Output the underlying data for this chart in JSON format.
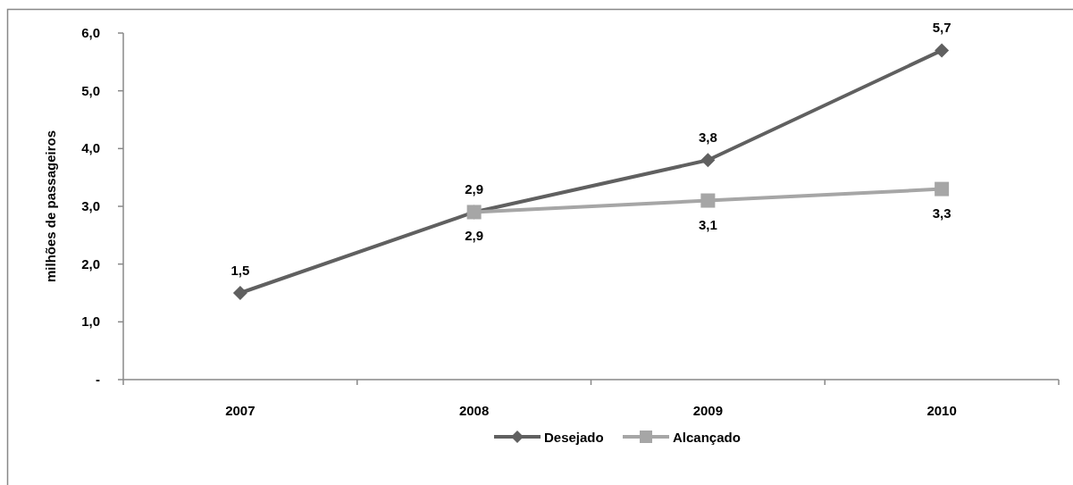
{
  "chart_data": {
    "type": "line",
    "ylabel": "milhões de passageiros",
    "categories": [
      "2007",
      "2008",
      "2009",
      "2010"
    ],
    "series": [
      {
        "name": "Desejado",
        "color": "#606060",
        "marker": "diamond",
        "values": [
          1.5,
          2.9,
          3.8,
          5.7
        ],
        "value_labels": [
          "1,5",
          "2,9",
          "3,8",
          "5,7"
        ]
      },
      {
        "name": "Alcançado",
        "color": "#a6a6a6",
        "marker": "square",
        "values": [
          null,
          2.9,
          3.1,
          3.3
        ],
        "value_labels": [
          null,
          "2,9",
          "3,1",
          "3,3"
        ]
      }
    ],
    "ylim": [
      0,
      6
    ],
    "yticks": [
      {
        "value": 0,
        "label": "-"
      },
      {
        "value": 1,
        "label": "1,0"
      },
      {
        "value": 2,
        "label": "2,0"
      },
      {
        "value": 3,
        "label": "3,0"
      },
      {
        "value": 4,
        "label": "4,0"
      },
      {
        "value": 5,
        "label": "5,0"
      },
      {
        "value": 6,
        "label": "6,0"
      }
    ],
    "grid": false,
    "legend": "bottom"
  }
}
